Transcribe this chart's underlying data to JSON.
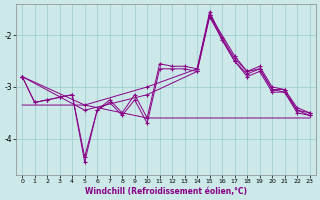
{
  "background_color": "#cce8e8",
  "grid_color": "#99cccc",
  "line_color": "#880088",
  "xlabel": "Windchill (Refroidissement éolien,°C)",
  "xlim": [
    -0.5,
    23.5
  ],
  "ylim": [
    -4.7,
    -1.4
  ],
  "yticks": [
    -4,
    -3,
    -2
  ],
  "xticks": [
    0,
    1,
    2,
    3,
    4,
    5,
    6,
    7,
    8,
    9,
    10,
    11,
    12,
    13,
    14,
    15,
    16,
    17,
    18,
    19,
    20,
    21,
    22,
    23
  ],
  "series_zigzag1_x": [
    0,
    1,
    2,
    3,
    4,
    5,
    6,
    7,
    8,
    9,
    10,
    11,
    12,
    13,
    14,
    15,
    16,
    17,
    18,
    19,
    20,
    21,
    22,
    23
  ],
  "series_zigzag1_y": [
    -2.8,
    -3.3,
    -3.25,
    -3.2,
    -3.15,
    -4.35,
    -3.45,
    -3.3,
    -3.55,
    -3.25,
    -3.7,
    -2.65,
    -2.65,
    -2.65,
    -2.7,
    -1.6,
    -2.1,
    -2.5,
    -2.75,
    -2.65,
    -3.05,
    -3.1,
    -3.45,
    -3.55
  ],
  "series_zigzag2_x": [
    0,
    1,
    2,
    3,
    4,
    5,
    6,
    7,
    8,
    9,
    10,
    11,
    12,
    13,
    14,
    15,
    16,
    17,
    18,
    19,
    20,
    21,
    22,
    23
  ],
  "series_zigzag2_y": [
    -2.8,
    -3.3,
    -3.25,
    -3.2,
    -3.15,
    -4.45,
    -3.45,
    -3.25,
    -3.5,
    -3.15,
    -3.6,
    -2.55,
    -2.6,
    -2.6,
    -2.65,
    -1.55,
    -2.05,
    -2.45,
    -2.7,
    -2.6,
    -3.0,
    -3.05,
    -3.4,
    -3.5
  ],
  "series_trend1_x": [
    0,
    5,
    10,
    14,
    15,
    17,
    18,
    19,
    20,
    21,
    22,
    23
  ],
  "series_trend1_y": [
    -2.8,
    -3.35,
    -3.0,
    -2.65,
    -1.6,
    -2.4,
    -2.7,
    -2.65,
    -3.05,
    -3.05,
    -3.45,
    -3.5
  ],
  "series_trend2_x": [
    0,
    5,
    10,
    14,
    15,
    17,
    18,
    19,
    20,
    21,
    22,
    23
  ],
  "series_trend2_y": [
    -2.8,
    -3.45,
    -3.15,
    -2.7,
    -1.65,
    -2.5,
    -2.8,
    -2.7,
    -3.1,
    -3.1,
    -3.5,
    -3.55
  ],
  "series_flat_x": [
    0,
    1,
    5,
    10,
    14,
    20,
    23
  ],
  "series_flat_y": [
    -3.35,
    -3.35,
    -3.35,
    -3.6,
    -3.6,
    -3.6,
    -3.6
  ]
}
